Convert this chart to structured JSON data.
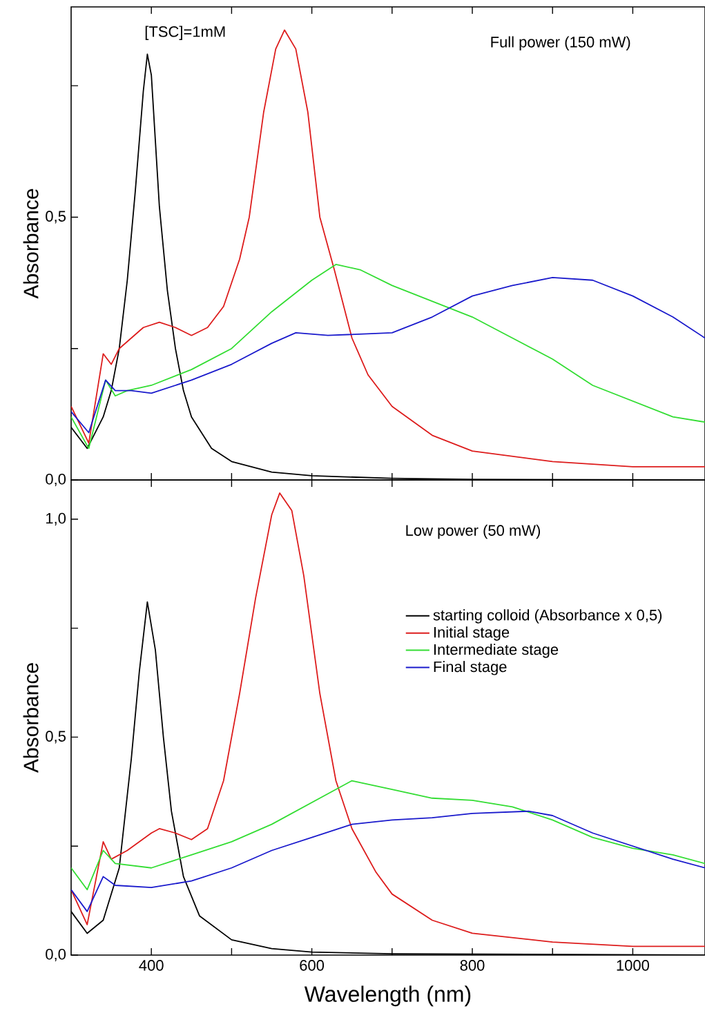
{
  "chart_data": [
    {
      "type": "line",
      "ylabel": "Absorbance",
      "annotations": [
        "[TSC]=1mM",
        "Full power (150 mW)"
      ],
      "xlim": [
        300,
        1090
      ],
      "ylim": [
        0,
        0.9
      ],
      "xticks": [
        400,
        {
          "value": 500,
          "label": null
        },
        600,
        {
          "value": 700,
          "label": null
        },
        800,
        {
          "value": 900,
          "label": null
        },
        1000
      ],
      "yticks": [
        {
          "value": 0,
          "label": "0,0"
        },
        {
          "value": 0.25,
          "label": null
        },
        {
          "value": 0.5,
          "label": "0,5"
        },
        {
          "value": 0.75,
          "label": null
        }
      ],
      "tick_labels": "y",
      "legend": false,
      "series": [
        {
          "color": "#000000",
          "x": [
            300,
            320,
            340,
            350,
            360,
            370,
            380,
            390,
            395,
            400,
            410,
            420,
            430,
            440,
            450,
            475,
            500,
            550,
            600,
            700,
            800,
            1090
          ],
          "values": [
            0.1,
            0.06,
            0.12,
            0.17,
            0.25,
            0.38,
            0.55,
            0.74,
            0.81,
            0.77,
            0.52,
            0.36,
            0.25,
            0.17,
            0.12,
            0.06,
            0.035,
            0.015,
            0.008,
            0.003,
            0.001,
            0.0
          ]
        },
        {
          "color": "#dd1c1c",
          "x": [
            300,
            322,
            340,
            350,
            360,
            375,
            390,
            410,
            430,
            450,
            470,
            490,
            510,
            522,
            540,
            555,
            566,
            580,
            595,
            610,
            628,
            650,
            670,
            700,
            750,
            800,
            900,
            1000,
            1090
          ],
          "values": [
            0.14,
            0.07,
            0.24,
            0.22,
            0.25,
            0.27,
            0.29,
            0.3,
            0.29,
            0.275,
            0.29,
            0.33,
            0.42,
            0.5,
            0.7,
            0.82,
            0.856,
            0.82,
            0.7,
            0.5,
            0.4,
            0.27,
            0.2,
            0.14,
            0.085,
            0.055,
            0.035,
            0.025,
            0.025
          ]
        },
        {
          "color": "#33dd33",
          "x": [
            300,
            322,
            343,
            355,
            370,
            400,
            450,
            500,
            550,
            600,
            630,
            660,
            700,
            750,
            800,
            850,
            900,
            950,
            1000,
            1050,
            1090
          ],
          "values": [
            0.12,
            0.06,
            0.19,
            0.16,
            0.17,
            0.18,
            0.21,
            0.25,
            0.32,
            0.38,
            0.41,
            0.4,
            0.37,
            0.34,
            0.31,
            0.27,
            0.23,
            0.18,
            0.15,
            0.12,
            0.11
          ]
        },
        {
          "color": "#1a1acc",
          "x": [
            300,
            322,
            343,
            355,
            375,
            400,
            450,
            500,
            550,
            580,
            620,
            700,
            750,
            800,
            850,
            900,
            950,
            1000,
            1050,
            1090
          ],
          "values": [
            0.13,
            0.09,
            0.19,
            0.17,
            0.17,
            0.165,
            0.19,
            0.22,
            0.26,
            0.28,
            0.275,
            0.28,
            0.31,
            0.35,
            0.37,
            0.385,
            0.38,
            0.35,
            0.31,
            0.27
          ]
        }
      ]
    },
    {
      "type": "line",
      "xlabel": "Wavelength (nm)",
      "ylabel": "Absorbance",
      "annotations": [
        "Low power (50 mW)"
      ],
      "xlim": [
        300,
        1090
      ],
      "ylim": [
        0,
        1.09
      ],
      "xticks": [
        400,
        {
          "value": 500,
          "label": null
        },
        600,
        {
          "value": 700,
          "label": null
        },
        800,
        {
          "value": 900,
          "label": null
        },
        1000
      ],
      "yticks": [
        {
          "value": 0,
          "label": "0,0"
        },
        {
          "value": 0.25,
          "label": null
        },
        {
          "value": 0.5,
          "label": "0,5"
        },
        {
          "value": 0.75,
          "label": null
        },
        {
          "value": 1.0,
          "label": "1,0"
        }
      ],
      "legend": "right",
      "series": [
        {
          "name": "starting colloid (Absorbance x 0,5)",
          "color": "#000000",
          "x": [
            300,
            320,
            340,
            360,
            375,
            385,
            395,
            405,
            415,
            425,
            440,
            460,
            500,
            550,
            600,
            700,
            1090
          ],
          "values": [
            0.1,
            0.05,
            0.08,
            0.2,
            0.45,
            0.65,
            0.81,
            0.7,
            0.5,
            0.33,
            0.18,
            0.09,
            0.035,
            0.015,
            0.007,
            0.003,
            0.0
          ]
        },
        {
          "name": "Initial stage",
          "color": "#dd1c1c",
          "x": [
            300,
            320,
            340,
            350,
            370,
            400,
            410,
            430,
            450,
            470,
            490,
            510,
            530,
            550,
            560,
            575,
            590,
            610,
            630,
            650,
            680,
            700,
            750,
            800,
            900,
            1000,
            1090
          ],
          "values": [
            0.15,
            0.07,
            0.26,
            0.22,
            0.24,
            0.28,
            0.29,
            0.28,
            0.265,
            0.29,
            0.4,
            0.6,
            0.82,
            1.01,
            1.06,
            1.02,
            0.87,
            0.6,
            0.4,
            0.29,
            0.19,
            0.14,
            0.08,
            0.05,
            0.03,
            0.02,
            0.02
          ]
        },
        {
          "name": "Intermediate stage",
          "color": "#33dd33",
          "x": [
            300,
            320,
            340,
            355,
            400,
            450,
            500,
            550,
            600,
            650,
            700,
            750,
            800,
            850,
            900,
            950,
            1000,
            1050,
            1090
          ],
          "values": [
            0.2,
            0.15,
            0.24,
            0.21,
            0.2,
            0.23,
            0.26,
            0.3,
            0.35,
            0.4,
            0.38,
            0.36,
            0.355,
            0.34,
            0.31,
            0.27,
            0.245,
            0.23,
            0.21
          ]
        },
        {
          "name": "Final stage",
          "color": "#1a1acc",
          "x": [
            300,
            320,
            340,
            355,
            400,
            450,
            500,
            550,
            600,
            650,
            700,
            750,
            800,
            870,
            900,
            950,
            1000,
            1050,
            1090
          ],
          "values": [
            0.15,
            0.1,
            0.18,
            0.16,
            0.155,
            0.17,
            0.2,
            0.24,
            0.27,
            0.3,
            0.31,
            0.315,
            0.325,
            0.33,
            0.32,
            0.28,
            0.25,
            0.22,
            0.2
          ]
        }
      ]
    }
  ]
}
